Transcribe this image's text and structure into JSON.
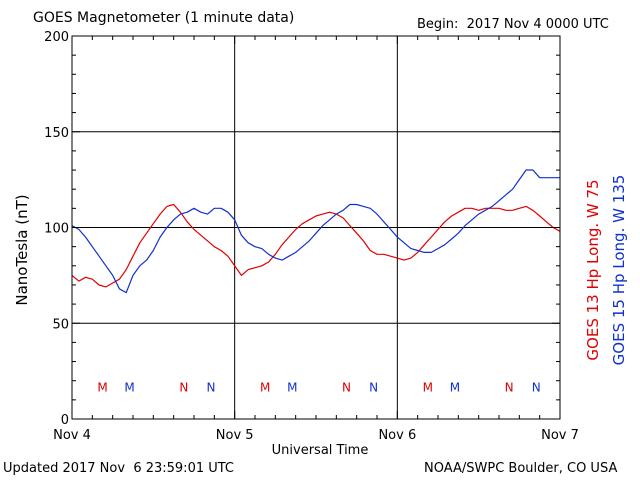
{
  "header": {
    "title": "GOES Magnetometer (1 minute data)",
    "begin": "Begin:  2017 Nov 4 0000 UTC"
  },
  "footer": {
    "updated": "Updated 2017 Nov  6 23:59:01 UTC",
    "source": "NOAA/SWPC Boulder, CO USA"
  },
  "colors": {
    "goes13": "#e00000",
    "goes15": "#1030d0",
    "axis": "#000000",
    "background": "#ffffff"
  },
  "chart_data": {
    "type": "line",
    "title": "GOES Magnetometer (1 minute data)",
    "xlabel": "Universal Time",
    "ylabel": "NanoTesla (nT)",
    "xlim": [
      0,
      72
    ],
    "ylim": [
      0,
      200
    ],
    "yticks": [
      0,
      50,
      100,
      150,
      200
    ],
    "xticks": [
      {
        "label": "Nov 4",
        "value": 0
      },
      {
        "label": "Nov 5",
        "value": 24
      },
      {
        "label": "Nov 6",
        "value": 48
      },
      {
        "label": "Nov 7",
        "value": 72
      }
    ],
    "grid": true,
    "markers": [
      {
        "label": "M",
        "x": 4.5,
        "series": 0
      },
      {
        "label": "M",
        "x": 8.5,
        "series": 1
      },
      {
        "label": "N",
        "x": 16.5,
        "series": 0
      },
      {
        "label": "N",
        "x": 20.5,
        "series": 1
      },
      {
        "label": "M",
        "x": 28.5,
        "series": 0
      },
      {
        "label": "M",
        "x": 32.5,
        "series": 1
      },
      {
        "label": "N",
        "x": 40.5,
        "series": 0
      },
      {
        "label": "N",
        "x": 44.5,
        "series": 1
      },
      {
        "label": "M",
        "x": 52.5,
        "series": 0
      },
      {
        "label": "M",
        "x": 56.5,
        "series": 1
      },
      {
        "label": "N",
        "x": 64.5,
        "series": 0
      },
      {
        "label": "N",
        "x": 68.5,
        "series": 1
      }
    ],
    "marker_y": 17,
    "series": [
      {
        "name": "GOES 13 Hp  Long. W 75",
        "color": "#e00000",
        "x": [
          0,
          1,
          2,
          3,
          4,
          5,
          6,
          7,
          8,
          9,
          10,
          11,
          12,
          13,
          14,
          15,
          16,
          17,
          18,
          19,
          20,
          21,
          22,
          23,
          24,
          25,
          26,
          27,
          28,
          29,
          30,
          31,
          32,
          33,
          34,
          35,
          36,
          37,
          38,
          39,
          40,
          41,
          42,
          43,
          44,
          45,
          46,
          47,
          48,
          49,
          50,
          51,
          52,
          53,
          54,
          55,
          56,
          57,
          58,
          59,
          60,
          61,
          62,
          63,
          64,
          65,
          66,
          67,
          68,
          69,
          70,
          71,
          72
        ],
        "values": [
          75,
          72,
          74,
          73,
          70,
          69,
          71,
          73,
          78,
          85,
          92,
          97,
          102,
          107,
          111,
          112,
          108,
          103,
          99,
          96,
          93,
          90,
          88,
          85,
          80,
          75,
          78,
          79,
          80,
          82,
          86,
          91,
          95,
          99,
          102,
          104,
          106,
          107,
          108,
          107,
          105,
          101,
          97,
          93,
          88,
          86,
          86,
          85,
          84,
          83,
          84,
          87,
          91,
          95,
          99,
          103,
          106,
          108,
          110,
          110,
          109,
          110,
          110,
          110,
          109,
          109,
          110,
          111,
          109,
          106,
          103,
          100,
          98
        ]
      },
      {
        "name": "GOES 15 Hp  Long. W 135",
        "color": "#1030d0",
        "x": [
          0,
          1,
          2,
          3,
          4,
          5,
          6,
          7,
          8,
          9,
          10,
          11,
          12,
          13,
          14,
          15,
          16,
          17,
          18,
          19,
          20,
          21,
          22,
          23,
          24,
          25,
          26,
          27,
          28,
          29,
          30,
          31,
          32,
          33,
          34,
          35,
          36,
          37,
          38,
          39,
          40,
          41,
          42,
          43,
          44,
          45,
          46,
          47,
          48,
          49,
          50,
          51,
          52,
          53,
          54,
          55,
          56,
          57,
          58,
          59,
          60,
          61,
          62,
          63,
          64,
          65,
          66,
          67,
          68,
          69,
          70,
          71,
          72
        ],
        "values": [
          101,
          99,
          95,
          90,
          85,
          80,
          75,
          68,
          66,
          75,
          80,
          83,
          88,
          95,
          100,
          104,
          107,
          108,
          110,
          108,
          107,
          110,
          110,
          108,
          104,
          96,
          92,
          90,
          89,
          86,
          84,
          83,
          85,
          87,
          90,
          93,
          97,
          101,
          104,
          107,
          109,
          112,
          112,
          111,
          110,
          107,
          103,
          99,
          95,
          92,
          89,
          88,
          87,
          87,
          89,
          91,
          94,
          97,
          101,
          104,
          107,
          109,
          111,
          114,
          117,
          120,
          125,
          130,
          130,
          126,
          126,
          126,
          126
        ]
      }
    ]
  }
}
